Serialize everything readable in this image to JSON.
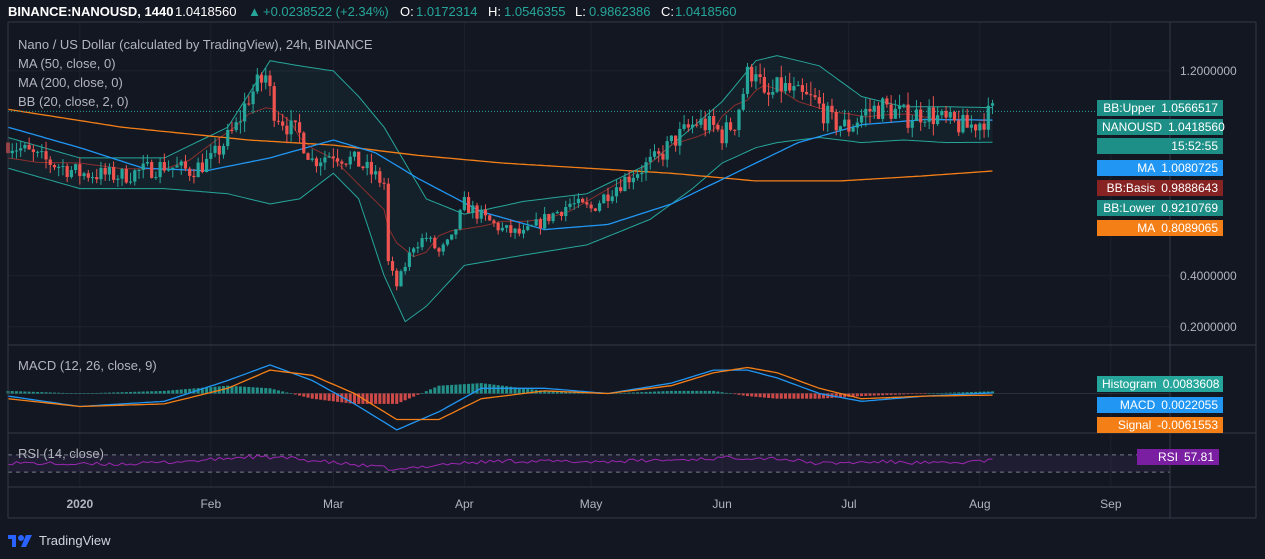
{
  "header": {
    "symbol": "BINANCE:NANOUSD, 1440",
    "price": "1.0418560",
    "change": "+0.0238522 (+2.34%)",
    "open_label": "O:",
    "open": "1.0172314",
    "high_label": "H:",
    "high": "1.0546355",
    "low_label": "L:",
    "low": "0.9862386",
    "close_label": "C:",
    "close": "1.0418560"
  },
  "legend": {
    "title": "Nano / US Dollar (calculated by TradingView), 24h, BINANCE",
    "ma50": "MA (50, close, 0)",
    "ma200": "MA (200, close, 0)",
    "bb": "BB (20, close, 2, 0)",
    "macd": "MACD (12, 26, close, 9)",
    "rsi": "RSI (14, close)"
  },
  "price_tags": [
    {
      "name": "BB:Upper",
      "value": "1.0566517",
      "color": "#1e8f86"
    },
    {
      "name": "NANOUSD",
      "value": "1.0418560",
      "color": "#1e8f86"
    },
    {
      "name": "",
      "value": "15:52:55",
      "color": "#1e8f86"
    },
    {
      "name": "MA",
      "value": "1.0080725",
      "color": "#2196f3"
    },
    {
      "name": "BB:Basis",
      "value": "0.9888643",
      "color": "#872323"
    },
    {
      "name": "BB:Lower",
      "value": "0.9210769",
      "color": "#1e8f86"
    },
    {
      "name": "MA",
      "value": "0.8089065",
      "color": "#f57f17"
    }
  ],
  "macd_tags": [
    {
      "name": "Histogram",
      "value": "0.0083608",
      "color": "#26a69a"
    },
    {
      "name": "MACD",
      "value": "0.0022055",
      "color": "#2196f3"
    },
    {
      "name": "Signal",
      "value": "-0.0061553",
      "color": "#f57f17"
    }
  ],
  "rsi_tag": {
    "name": "RSI",
    "value": "57.81",
    "color": "#7b1fa2"
  },
  "colors": {
    "up": "#26a69a",
    "down": "#ef5350",
    "ma50": "#2196f3",
    "ma200": "#f57f17",
    "bb": "#26a69a",
    "macd": "#2196f3",
    "signal": "#f57f17",
    "rsi": "#9c27b0"
  },
  "footer": {
    "brand": "TradingView"
  },
  "chart_data": {
    "type": "candlestick",
    "title": "Nano / US Dollar (calculated by TradingView), 24h, BINANCE",
    "y_ticks": [
      1.2,
      0.4,
      0.2
    ],
    "y_tick_labels": [
      "1.2000000",
      "0.4000000",
      "0.2000000"
    ],
    "ylim": [
      0.16,
      1.36
    ],
    "x_ticks": [
      "2020",
      "Feb",
      "Mar",
      "Apr",
      "May",
      "Jun",
      "Jul",
      "Aug",
      "Sep"
    ],
    "x_tick_days": [
      0,
      31,
      60,
      91,
      121,
      152,
      182,
      213,
      244
    ],
    "x_range_days": [
      -17,
      258
    ],
    "price_series_days": [
      -17,
      -10,
      0,
      10,
      20,
      26,
      31,
      37,
      40,
      44,
      46,
      50,
      52,
      55,
      60,
      66,
      72,
      73,
      75,
      79,
      82,
      85,
      88,
      91,
      96,
      100,
      105,
      110,
      116,
      121,
      126,
      131,
      137,
      140,
      146,
      150,
      152,
      155,
      158,
      160,
      162,
      166,
      170,
      174,
      178,
      182,
      186,
      190,
      196,
      200,
      205,
      210,
      213,
      216
    ],
    "price_close": [
      0.92,
      0.86,
      0.8,
      0.79,
      0.83,
      0.81,
      0.85,
      0.98,
      1.1,
      1.18,
      1.05,
      0.97,
      0.95,
      0.85,
      0.88,
      0.84,
      0.76,
      0.45,
      0.36,
      0.52,
      0.55,
      0.49,
      0.54,
      0.68,
      0.62,
      0.58,
      0.56,
      0.62,
      0.68,
      0.66,
      0.74,
      0.8,
      0.86,
      0.92,
      1.0,
      0.98,
      0.95,
      1.0,
      1.18,
      1.22,
      1.08,
      1.14,
      1.1,
      1.08,
      1.0,
      0.98,
      1.04,
      1.06,
      1.02,
      1.04,
      1.0,
      0.98,
      1.0,
      1.041856
    ],
    "ma50": {
      "days": [
        -17,
        0,
        15,
        30,
        45,
        60,
        70,
        80,
        95,
        110,
        125,
        140,
        155,
        170,
        185,
        200,
        216
      ],
      "values": [
        0.98,
        0.9,
        0.82,
        0.81,
        0.86,
        0.93,
        0.88,
        0.78,
        0.65,
        0.58,
        0.6,
        0.68,
        0.8,
        0.92,
        0.99,
        1.01,
        1.008
      ]
    },
    "ma200": {
      "days": [
        -17,
        10,
        40,
        60,
        80,
        100,
        120,
        140,
        160,
        180,
        200,
        216
      ],
      "values": [
        1.05,
        0.98,
        0.93,
        0.91,
        0.87,
        0.84,
        0.82,
        0.8,
        0.77,
        0.77,
        0.79,
        0.8089065
      ]
    },
    "bb_upper": {
      "days": [
        -17,
        0,
        20,
        35,
        45,
        52,
        60,
        66,
        72,
        82,
        91,
        105,
        120,
        135,
        145,
        152,
        160,
        165,
        175,
        185,
        195,
        205,
        216
      ],
      "values": [
        0.94,
        0.86,
        0.86,
        0.98,
        1.24,
        1.22,
        1.2,
        1.1,
        0.98,
        0.7,
        0.64,
        0.69,
        0.72,
        0.84,
        0.98,
        1.08,
        1.24,
        1.26,
        1.22,
        1.1,
        1.06,
        1.06,
        1.0566517
      ]
    },
    "bb_lower": {
      "days": [
        -17,
        0,
        20,
        35,
        45,
        52,
        60,
        66,
        72,
        77,
        82,
        91,
        105,
        120,
        135,
        145,
        152,
        160,
        165,
        175,
        185,
        195,
        205,
        216
      ],
      "values": [
        0.82,
        0.74,
        0.74,
        0.72,
        0.68,
        0.7,
        0.8,
        0.7,
        0.4,
        0.22,
        0.28,
        0.44,
        0.48,
        0.52,
        0.62,
        0.74,
        0.84,
        0.9,
        0.92,
        0.94,
        0.92,
        0.93,
        0.92,
        0.9210769
      ]
    },
    "macd": {
      "days": [
        -17,
        0,
        20,
        35,
        45,
        55,
        65,
        75,
        85,
        95,
        110,
        125,
        140,
        150,
        158,
        165,
        175,
        185,
        200,
        216
      ],
      "macd": [
        -0.01,
        -0.05,
        -0.03,
        0.05,
        0.11,
        0.05,
        -0.04,
        -0.14,
        -0.07,
        0.02,
        0.02,
        0.0,
        0.04,
        0.09,
        0.09,
        0.06,
        0.0,
        -0.03,
        -0.01,
        0.0022055
      ],
      "signal": [
        -0.02,
        -0.05,
        -0.04,
        0.02,
        0.09,
        0.07,
        0.0,
        -0.1,
        -0.1,
        -0.02,
        0.01,
        0.0,
        0.03,
        0.08,
        0.1,
        0.08,
        0.02,
        -0.02,
        -0.01,
        -0.0061553
      ],
      "histogram_last": 0.0083608
    },
    "rsi": {
      "days": [
        -17,
        0,
        15,
        30,
        40,
        50,
        60,
        72,
        75,
        85,
        100,
        120,
        140,
        155,
        165,
        175,
        190,
        205,
        216
      ],
      "values": [
        52,
        48,
        50,
        58,
        66,
        62,
        52,
        40,
        34,
        48,
        56,
        54,
        58,
        64,
        62,
        50,
        54,
        50,
        57.81
      ],
      "bands": [
        70,
        30
      ]
    }
  }
}
